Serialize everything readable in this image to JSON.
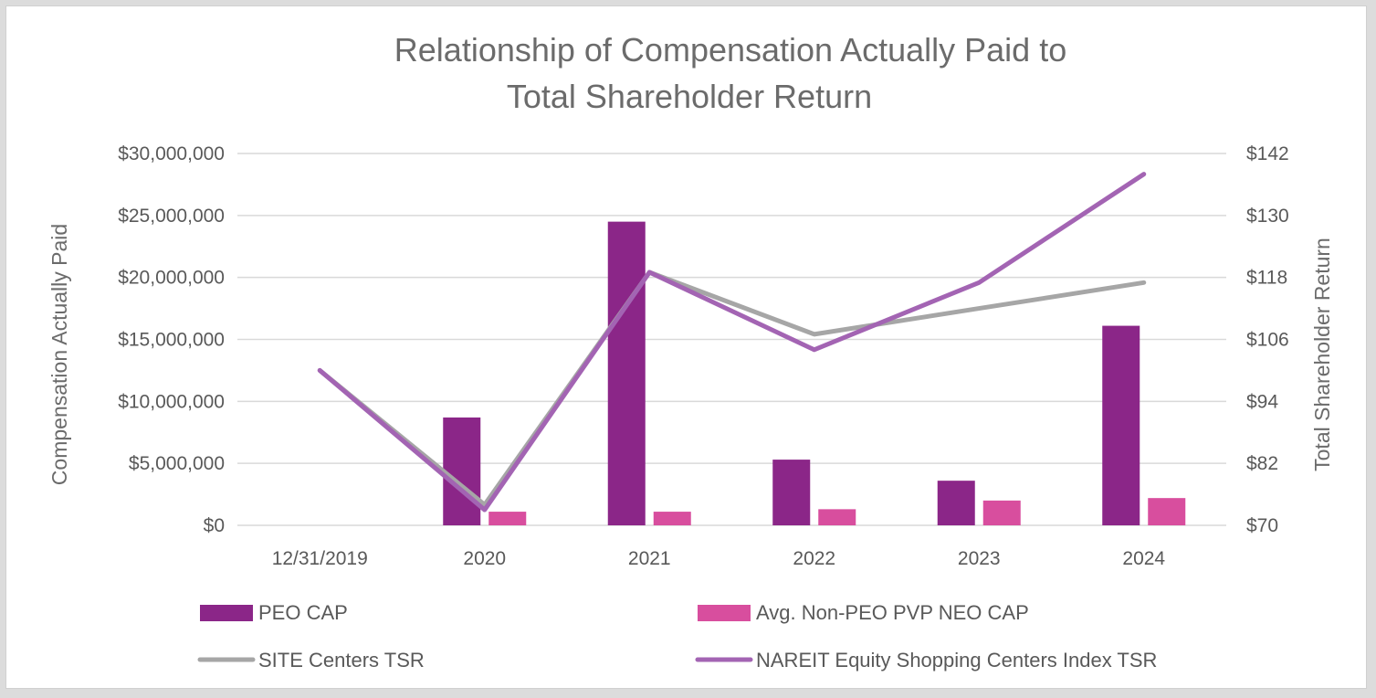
{
  "chart_data": {
    "type": "bar",
    "title_lines": [
      "Relationship of Compensation Actually Paid to",
      "Total Shareholder Return"
    ],
    "ylabel": "Compensation Actually Paid",
    "y2label": "Total Shareholder Return",
    "categories": [
      "12/31/2019",
      "2020",
      "2021",
      "2022",
      "2023",
      "2024"
    ],
    "y_ticks": [
      "$0",
      "$5,000,000",
      "$10,000,000",
      "$15,000,000",
      "$20,000,000",
      "$25,000,000",
      "$30,000,000"
    ],
    "y2_ticks": [
      "$70",
      "$82",
      "$94",
      "$106",
      "$118",
      "$130",
      "$142"
    ],
    "ylim": [
      0,
      30000000
    ],
    "y2lim": [
      70,
      142
    ],
    "grid": true,
    "legend_position": "bottom",
    "bar_series": [
      {
        "name": "PEO CAP",
        "color": "#8b2688",
        "values": [
          null,
          8700000,
          24500000,
          5300000,
          3600000,
          16100000
        ]
      },
      {
        "name": "Avg. Non-PEO PVP NEO CAP",
        "color": "#d84e9e",
        "values": [
          null,
          1100000,
          1100000,
          1300000,
          2000000,
          2200000
        ]
      }
    ],
    "line_series": [
      {
        "name": "SITE Centers TSR",
        "color": "#a6a6a6",
        "values": [
          100,
          74,
          119,
          107,
          112,
          117
        ]
      },
      {
        "name": "NAREIT Equity Shopping Centers Index TSR",
        "color": "#a364b3",
        "values": [
          100,
          73,
          119,
          104,
          117,
          138
        ]
      }
    ]
  }
}
